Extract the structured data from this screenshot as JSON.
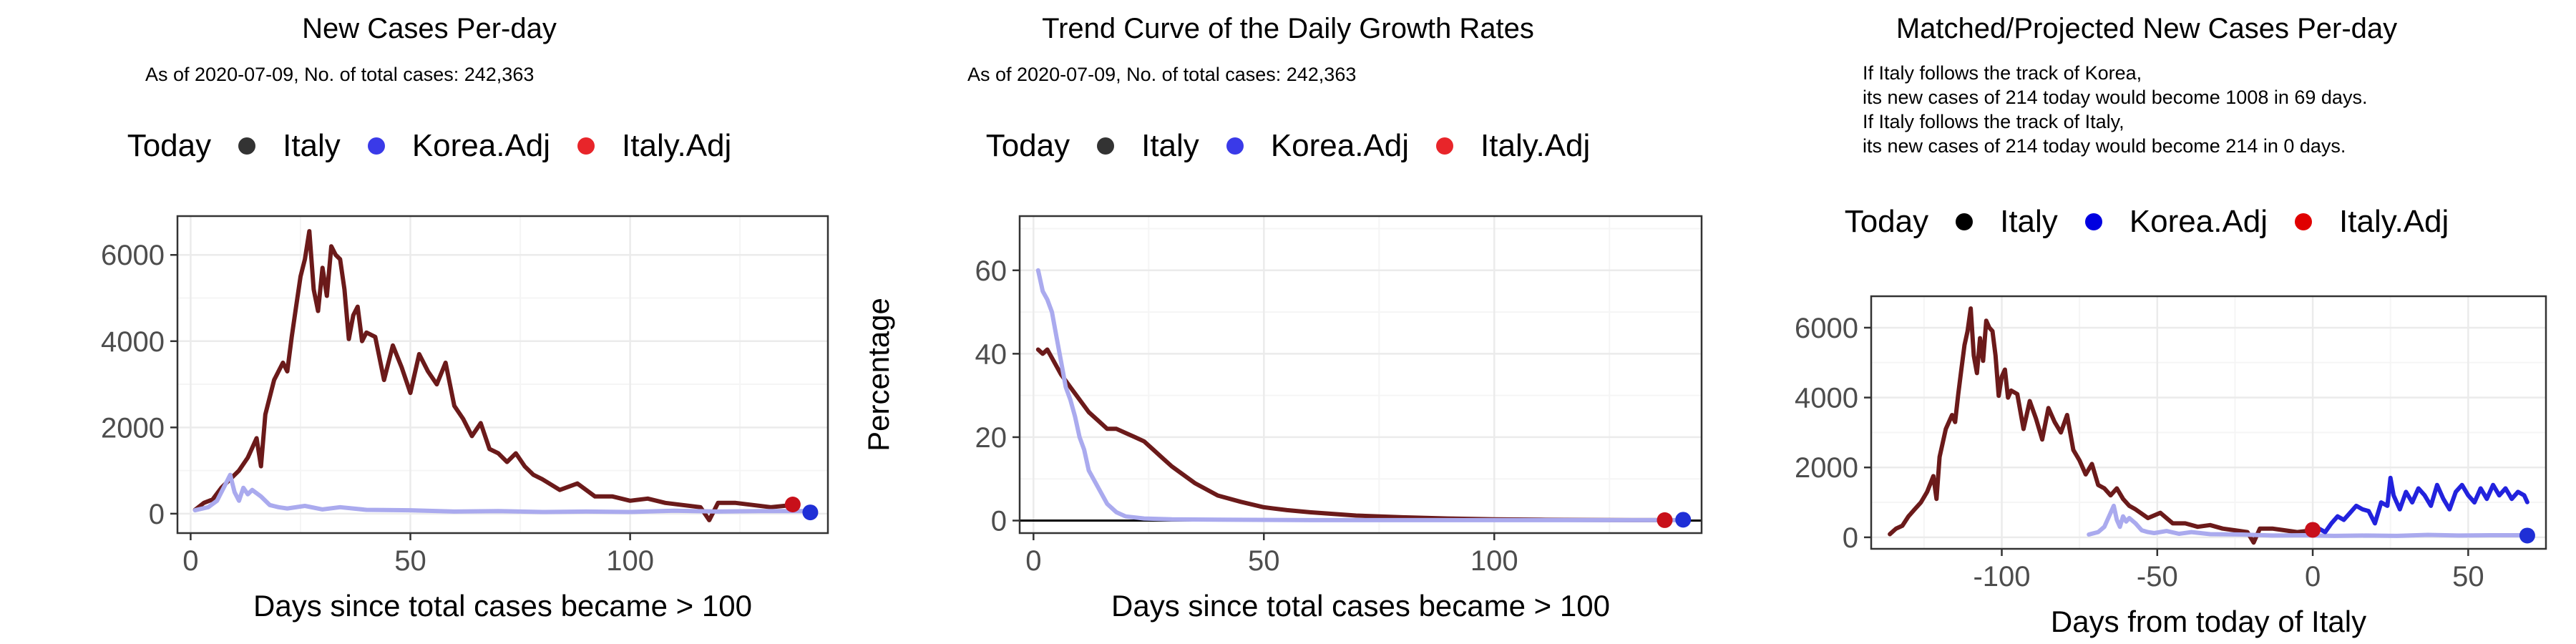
{
  "colors": {
    "italy": "#6b1a1a",
    "korea_adj": "#aaaaee",
    "korea_adj_proj": "#2222dd",
    "today_italy": "#c8101a",
    "today_korea": "#1f2fd6",
    "grid_major": "#ebebeb",
    "grid_minor": "#f5f5f5",
    "panel_border": "#333333"
  },
  "panels": [
    {
      "title": "New Cases Per-day",
      "subtitle": "As of 2020-07-09, No. of total cases: 242,363",
      "legend": {
        "title": "Today",
        "items": [
          {
            "label": "Italy",
            "color": "#333333"
          },
          {
            "label": "Korea.Adj",
            "color": "#3a3ae8"
          },
          {
            "label": "Italy.Adj",
            "color": "#e8252a"
          }
        ]
      }
    },
    {
      "title": "Trend Curve of the Daily Growth Rates",
      "subtitle": "As of 2020-07-09, No. of total cases: 242,363",
      "legend": {
        "title": "Today",
        "items": [
          {
            "label": "Italy",
            "color": "#333333"
          },
          {
            "label": "Korea.Adj",
            "color": "#3a3ae8"
          },
          {
            "label": "Italy.Adj",
            "color": "#e8252a"
          }
        ]
      }
    },
    {
      "title": "Matched/Projected New Cases Per-day",
      "subtitle": "If Italy follows the track of Korea,\nits new cases of 214 today would become 1008 in 69 days.\nIf Italy follows the track of Italy,\nits new cases of 214 today would become 214 in 0 days.",
      "legend": {
        "title": "Today",
        "items": [
          {
            "label": "Italy",
            "color": "#000000"
          },
          {
            "label": "Korea.Adj",
            "color": "#0000e0"
          },
          {
            "label": "Italy.Adj",
            "color": "#e00000"
          }
        ]
      }
    }
  ],
  "chart_data": [
    {
      "type": "line",
      "title": "New Cases Per-day",
      "xlabel": "Days since total cases became > 100",
      "ylabel": "",
      "xlim": [
        -3,
        145
      ],
      "ylim": [
        -450,
        6900
      ],
      "xticks": [
        0,
        50,
        100
      ],
      "yticks": [
        0,
        2000,
        4000,
        6000
      ],
      "grid": true,
      "legend_position": "top",
      "series": [
        {
          "name": "Italy",
          "color_key": "italy",
          "x": [
            1,
            3,
            5,
            7,
            9,
            11,
            13,
            15,
            16,
            17,
            19,
            21,
            22,
            23,
            24,
            25,
            26,
            27,
            28,
            29,
            30,
            31,
            32,
            33,
            34,
            35,
            36,
            37,
            38,
            39,
            40,
            42,
            44,
            46,
            48,
            50,
            52,
            54,
            56,
            58,
            60,
            62,
            64,
            66,
            68,
            70,
            72,
            74,
            76,
            78,
            80,
            84,
            88,
            92,
            96,
            100,
            104,
            108,
            112,
            116,
            118,
            120,
            124,
            128,
            132,
            136
          ],
          "y": [
            90,
            250,
            330,
            600,
            800,
            1000,
            1300,
            1750,
            1100,
            2300,
            3100,
            3500,
            3300,
            4100,
            4800,
            5500,
            5900,
            6550,
            5200,
            4700,
            5700,
            5050,
            6200,
            6000,
            5900,
            5200,
            4050,
            4600,
            4800,
            4000,
            4200,
            4100,
            3100,
            3900,
            3400,
            2800,
            3700,
            3300,
            3000,
            3500,
            2500,
            2200,
            1800,
            2100,
            1500,
            1400,
            1200,
            1400,
            1100,
            900,
            800,
            550,
            700,
            400,
            400,
            300,
            350,
            250,
            200,
            150,
            -150,
            250,
            250,
            200,
            150,
            190
          ]
        },
        {
          "name": "Korea.Adj",
          "color_key": "korea_adj",
          "x": [
            1,
            4,
            6,
            8,
            9,
            10,
            11,
            12,
            13,
            14,
            16,
            18,
            20,
            22,
            26,
            30,
            34,
            40,
            50,
            60,
            70,
            80,
            90,
            100,
            110,
            120,
            130,
            140
          ],
          "y": [
            80,
            150,
            300,
            700,
            900,
            500,
            300,
            600,
            450,
            550,
            400,
            200,
            150,
            120,
            180,
            100,
            150,
            90,
            80,
            50,
            60,
            40,
            50,
            40,
            70,
            50,
            60,
            60
          ]
        }
      ],
      "today_points": [
        {
          "name": "Italy.Adj",
          "x": 137,
          "y": 214,
          "color_key": "today_italy"
        },
        {
          "name": "Korea.Adj",
          "x": 141,
          "y": 30,
          "color_key": "today_korea"
        }
      ]
    },
    {
      "type": "line",
      "title": "Trend Curve of the Daily Growth Rates",
      "xlabel": "Days since total cases became > 100",
      "ylabel": "Percentage",
      "xlim": [
        -3,
        145
      ],
      "ylim": [
        -3,
        73
      ],
      "xticks": [
        0,
        50,
        100
      ],
      "yticks": [
        0,
        20,
        40,
        60
      ],
      "grid": true,
      "legend_position": "top",
      "series": [
        {
          "name": "Italy",
          "color_key": "italy",
          "x": [
            1,
            2,
            3,
            4,
            5,
            6,
            8,
            10,
            12,
            14,
            16,
            18,
            20,
            22,
            24,
            26,
            28,
            30,
            35,
            40,
            45,
            50,
            55,
            60,
            70,
            80,
            90,
            100,
            110,
            120,
            130,
            137
          ],
          "y": [
            41,
            40,
            41,
            39,
            37,
            35,
            32,
            29,
            26,
            24,
            22,
            22,
            21,
            20,
            19,
            17,
            15,
            13,
            9,
            6,
            4.5,
            3.2,
            2.5,
            2,
            1.2,
            0.8,
            0.5,
            0.3,
            0.2,
            0.15,
            0.1,
            0.1
          ]
        },
        {
          "name": "Korea.Adj",
          "color_key": "korea_adj",
          "x": [
            1,
            2,
            3,
            4,
            5,
            6,
            7,
            8,
            9,
            10,
            11,
            12,
            14,
            16,
            18,
            20,
            24,
            30,
            40,
            60,
            80,
            100,
            120,
            140
          ],
          "y": [
            60,
            55,
            53,
            50,
            44,
            38,
            32,
            29,
            25,
            20,
            17,
            12,
            8,
            4,
            2,
            1,
            0.5,
            0.3,
            0.2,
            0.1,
            0.1,
            0.1,
            0.1,
            0.1
          ]
        }
      ],
      "today_points": [
        {
          "name": "Italy.Adj",
          "x": 137,
          "y": 0.1,
          "color_key": "today_italy"
        },
        {
          "name": "Korea.Adj",
          "x": 141,
          "y": 0.2,
          "color_key": "today_korea"
        }
      ]
    },
    {
      "type": "line",
      "title": "Matched/Projected New Cases Per-day",
      "xlabel": "Days from today of Italy",
      "ylabel": "",
      "xlim": [
        -142,
        75
      ],
      "ylim": [
        -330,
        6900
      ],
      "xticks": [
        -100,
        -50,
        0,
        50
      ],
      "yticks": [
        0,
        2000,
        4000,
        6000
      ],
      "grid": true,
      "legend_position": "top",
      "series": [
        {
          "name": "Italy",
          "color_key": "italy",
          "x": [
            -136,
            -134,
            -132,
            -130,
            -128,
            -126,
            -124,
            -122,
            -121,
            -120,
            -118,
            -116,
            -115,
            -114,
            -113,
            -112,
            -111,
            -110,
            -109,
            -108,
            -107,
            -106,
            -105,
            -104,
            -103,
            -102,
            -101,
            -100,
            -99,
            -98,
            -97,
            -95,
            -93,
            -91,
            -89,
            -87,
            -85,
            -83,
            -81,
            -79,
            -77,
            -75,
            -73,
            -71,
            -69,
            -67,
            -65,
            -63,
            -61,
            -59,
            -57,
            -53,
            -49,
            -45,
            -41,
            -37,
            -33,
            -29,
            -25,
            -21,
            -19,
            -17,
            -13,
            -9,
            -5,
            -1,
            0
          ],
          "y": [
            90,
            250,
            330,
            600,
            800,
            1000,
            1300,
            1750,
            1100,
            2300,
            3100,
            3500,
            3300,
            4100,
            4800,
            5500,
            5900,
            6550,
            5200,
            4700,
            5700,
            5050,
            6200,
            6000,
            5900,
            5200,
            4050,
            4600,
            4800,
            4000,
            4200,
            4100,
            3100,
            3900,
            3400,
            2800,
            3700,
            3300,
            3000,
            3500,
            2500,
            2200,
            1800,
            2100,
            1500,
            1400,
            1200,
            1400,
            1100,
            900,
            800,
            550,
            700,
            400,
            400,
            300,
            350,
            250,
            200,
            150,
            -150,
            250,
            250,
            200,
            150,
            190,
            214
          ]
        },
        {
          "name": "Korea.Adj",
          "color_key": "korea_adj",
          "x": [
            -72,
            -69,
            -67,
            -65,
            -64,
            -63,
            -62,
            -61,
            -60,
            -59,
            -57,
            -55,
            -53,
            -51,
            -47,
            -43,
            -39,
            -33,
            -23,
            -13,
            -3,
            7,
            17,
            27,
            37,
            47,
            57,
            67,
            69
          ],
          "y": [
            80,
            150,
            300,
            700,
            900,
            500,
            300,
            600,
            450,
            550,
            400,
            200,
            150,
            120,
            180,
            100,
            150,
            90,
            80,
            50,
            60,
            40,
            50,
            40,
            70,
            50,
            60,
            60,
            40
          ]
        },
        {
          "name": "Korea.Adj",
          "color_key": "korea_adj_proj",
          "x": [
            0,
            2,
            4,
            6,
            8,
            10,
            12,
            14,
            16,
            18,
            20,
            22,
            24,
            25,
            26,
            28,
            30,
            32,
            34,
            36,
            38,
            40,
            42,
            44,
            46,
            48,
            50,
            52,
            54,
            56,
            58,
            60,
            62,
            64,
            66,
            68,
            69
          ],
          "y": [
            214,
            250,
            150,
            400,
            600,
            500,
            700,
            900,
            800,
            750,
            400,
            1000,
            900,
            1700,
            1200,
            800,
            1300,
            1000,
            1400,
            1200,
            900,
            1500,
            1100,
            800,
            1300,
            1500,
            1200,
            1000,
            1400,
            1100,
            1500,
            1200,
            1400,
            1100,
            1300,
            1200,
            1008
          ]
        }
      ],
      "today_points": [
        {
          "name": "Italy.Adj",
          "x": 0,
          "y": 214,
          "color_key": "today_italy"
        },
        {
          "name": "Korea.Adj",
          "x": 69,
          "y": 50,
          "color_key": "today_korea"
        }
      ]
    }
  ]
}
